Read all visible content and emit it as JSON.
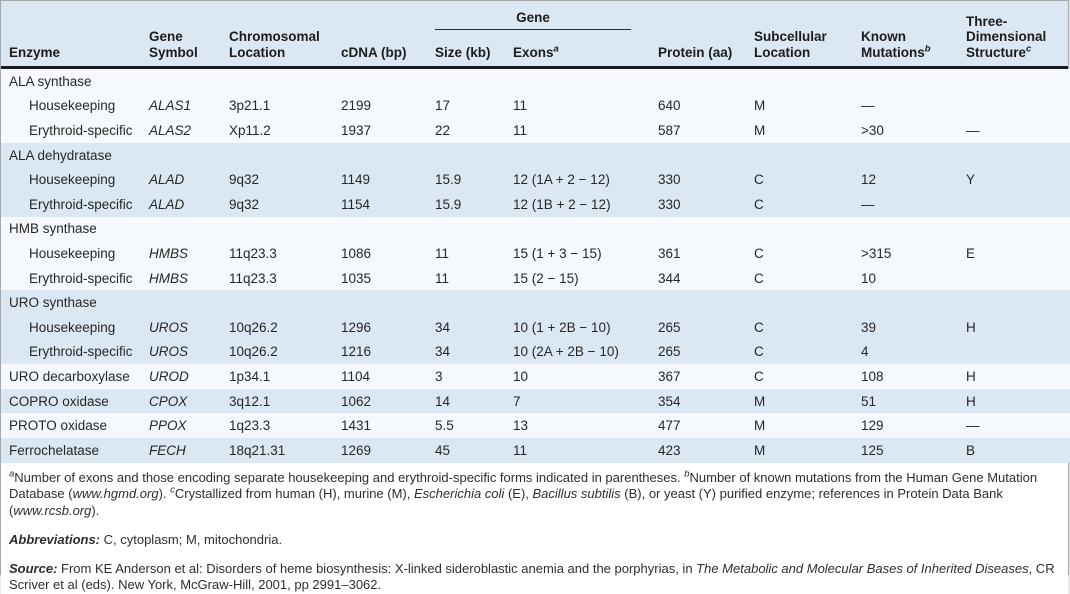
{
  "colors": {
    "header_bg": "#dbe8f4",
    "row_blue": "#dbe8f4",
    "row_white": "#f5f9fd",
    "header_rule": "#1b1b24",
    "outer_border": "#a3a8ad",
    "text": "#262626"
  },
  "table": {
    "group_header": "Gene",
    "columns": [
      {
        "id": "enzyme",
        "label": "Enzyme"
      },
      {
        "id": "gene-symbol",
        "label": "Gene Symbol"
      },
      {
        "id": "chromosomal-location",
        "label": "Chromosomal Location"
      },
      {
        "id": "cdna-bp",
        "label": "cDNA (bp)"
      },
      {
        "id": "size-kb",
        "label": "Size (kb)"
      },
      {
        "id": "exons",
        "label": "Exons",
        "sup": "a"
      },
      {
        "id": "protein-aa",
        "label": "Protein (aa)"
      },
      {
        "id": "subcellular-location",
        "label": "Subcellular Location"
      },
      {
        "id": "known-mutations",
        "label": "Known Mutations",
        "sup": "b"
      },
      {
        "id": "three-dimensional-structure",
        "label": "Three-Dimensional Structure",
        "sup": "c"
      }
    ],
    "rows": [
      {
        "section": true,
        "shade": "white",
        "indent": false,
        "cells": [
          "ALA synthase"
        ]
      },
      {
        "section": false,
        "shade": "white",
        "indent": true,
        "cells": [
          "Housekeeping",
          "ALAS1",
          "3p21.1",
          "2199",
          "17",
          "11",
          "640",
          "M",
          "—",
          ""
        ]
      },
      {
        "section": false,
        "shade": "white",
        "indent": true,
        "cells": [
          "Erythroid-specific",
          "ALAS2",
          "Xp11.2",
          "1937",
          "22",
          "11",
          "587",
          "M",
          ">30",
          "—"
        ]
      },
      {
        "section": true,
        "shade": "blue",
        "indent": false,
        "cells": [
          "ALA dehydratase"
        ]
      },
      {
        "section": false,
        "shade": "blue",
        "indent": true,
        "cells": [
          "Housekeeping",
          "ALAD",
          "9q32",
          "1149",
          "15.9",
          "12 (1A + 2 − 12)",
          "330",
          "C",
          "12",
          "Y"
        ]
      },
      {
        "section": false,
        "shade": "blue",
        "indent": true,
        "cells": [
          "Erythroid-specific",
          "ALAD",
          "9q32",
          "1154",
          "15.9",
          "12 (1B + 2 − 12)",
          "330",
          "C",
          "—",
          ""
        ]
      },
      {
        "section": true,
        "shade": "white",
        "indent": false,
        "cells": [
          "HMB synthase"
        ]
      },
      {
        "section": false,
        "shade": "white",
        "indent": true,
        "cells": [
          "Housekeeping",
          "HMBS",
          "11q23.3",
          "1086",
          "11",
          "15 (1 + 3 − 15)",
          "361",
          "C",
          ">315",
          "E"
        ]
      },
      {
        "section": false,
        "shade": "white",
        "indent": true,
        "cells": [
          "Erythroid-specific",
          "HMBS",
          "11q23.3",
          "1035",
          "11",
          "15 (2 − 15)",
          "344",
          "C",
          "10",
          ""
        ]
      },
      {
        "section": true,
        "shade": "blue",
        "indent": false,
        "cells": [
          "URO synthase"
        ]
      },
      {
        "section": false,
        "shade": "blue",
        "indent": true,
        "cells": [
          "Housekeeping",
          "UROS",
          "10q26.2",
          "1296",
          "34",
          "10 (1 + 2B − 10)",
          "265",
          "C",
          "39",
          "H"
        ]
      },
      {
        "section": false,
        "shade": "blue",
        "indent": true,
        "cells": [
          "Erythroid-specific",
          "UROS",
          "10q26.2",
          "1216",
          "34",
          "10 (2A + 2B − 10)",
          "265",
          "C",
          "4",
          ""
        ]
      },
      {
        "section": false,
        "shade": "white",
        "indent": false,
        "cells": [
          "URO decarboxylase",
          "UROD",
          "1p34.1",
          "1104",
          "3",
          "10",
          "367",
          "C",
          "108",
          "H"
        ]
      },
      {
        "section": false,
        "shade": "blue",
        "indent": false,
        "cells": [
          "COPRO oxidase",
          "CPOX",
          "3q12.1",
          "1062",
          "14",
          "7",
          "354",
          "M",
          "51",
          "H"
        ]
      },
      {
        "section": false,
        "shade": "white",
        "indent": false,
        "cells": [
          "PROTO oxidase",
          "PPOX",
          "1q23.3",
          "1431",
          "5.5",
          "13",
          "477",
          "M",
          "129",
          "—"
        ]
      },
      {
        "section": false,
        "shade": "blue",
        "indent": false,
        "cells": [
          "Ferrochelatase",
          "FECH",
          "18q21.31",
          "1269",
          "45",
          "11",
          "423",
          "M",
          "125",
          "B"
        ]
      }
    ]
  },
  "footnotes": {
    "main": {
      "sup_a": "a",
      "text_a": "Number of exons and those encoding separate housekeeping and erythroid-specific forms indicated in parentheses.  ",
      "sup_b": "b",
      "text_b1": "Number of known mutations from the Human Gene Mutation Database (",
      "italic_b": "www.hgmd.org",
      "text_b2": ").  ",
      "sup_c": "c",
      "text_c1": "Crystallized from human (H), murine (M), ",
      "italic_c1": "Escherichia coli",
      "text_c2": " (E), ",
      "italic_c2": "Bacillus subtilis",
      "text_c3": " (B), or yeast (Y) purified enzyme; references in Protein Data Bank (",
      "italic_c3": "www.rcsb.org",
      "text_c4": ")."
    },
    "abbreviations": {
      "label": "Abbreviations:",
      "text": " C, cytoplasm; M, mitochondria."
    },
    "source": {
      "label": "Source:",
      "text1": " From KE Anderson et al: Disorders of heme biosynthesis: X-linked sideroblastic anemia and the porphyrias, in ",
      "italic1": "The Metabolic and Molecular Bases of Inherited Diseases",
      "text2": ", CR Scriver et al (eds). New York, McGraw-Hill, 2001, pp 2991–3062."
    }
  }
}
